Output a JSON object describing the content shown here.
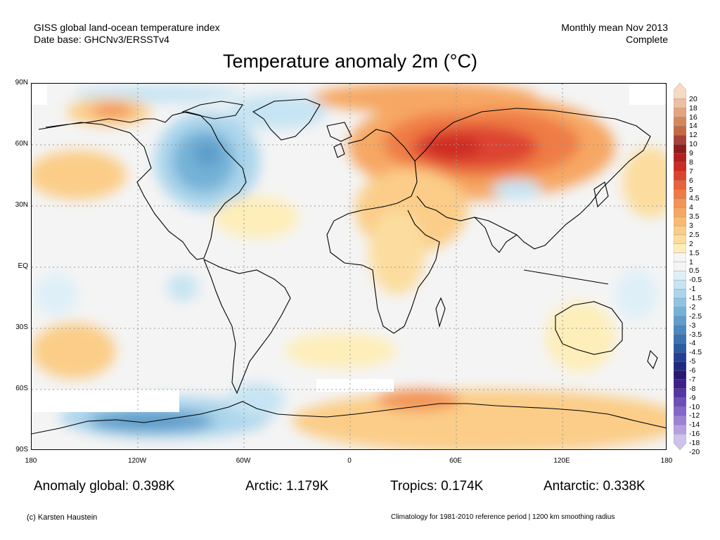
{
  "header": {
    "left_line1": "GISS global land-ocean temperature index",
    "left_line2": "Date base: GHCNv3/ERSSTv4",
    "right_line1": "Monthly mean Nov 2013",
    "right_line2": "Complete"
  },
  "title": "Temperature anomaly 2m (°C)",
  "lat_labels": [
    "90N",
    "60N",
    "30N",
    "EQ",
    "30S",
    "60S",
    "90S"
  ],
  "lon_labels": [
    "180",
    "120W",
    "60W",
    "0",
    "60E",
    "120E",
    "180"
  ],
  "colorbar": {
    "labels": [
      "20",
      "18",
      "16",
      "14",
      "12",
      "10",
      "9",
      "8",
      "7",
      "6",
      "5",
      "4.5",
      "4",
      "3.5",
      "3",
      "2.5",
      "2",
      "1.5",
      "1",
      "0.5",
      "-0.5",
      "-1",
      "-1.5",
      "-2",
      "-2.5",
      "-3",
      "-3.5",
      "-4",
      "-4.5",
      "-5",
      "-6",
      "-7",
      "-8",
      "-9",
      "-10",
      "-12",
      "-14",
      "-16",
      "-18",
      "-20"
    ],
    "colors": [
      "#f7d9c4",
      "#eebfa2",
      "#e3a47f",
      "#d4875f",
      "#c46b45",
      "#a5433a",
      "#8f1c1c",
      "#b51f21",
      "#cd2a22",
      "#dd4430",
      "#e8633a",
      "#ef7b45",
      "#f39354",
      "#f6a764",
      "#f9bb74",
      "#fbcd88",
      "#fcdd9f",
      "#feeeb9",
      "#f5f5f5",
      "#f5f5f5",
      "#deeff8",
      "#c6e4f3",
      "#acd5ec",
      "#8fc4e2",
      "#76b2d7",
      "#5f9ecb",
      "#4b88bf",
      "#3b72b1",
      "#2c5ba2",
      "#243f92",
      "#1e2a80",
      "#2a1873",
      "#3c1f88",
      "#5635a3",
      "#6d4fb8",
      "#8567c8",
      "#9d82d6",
      "#b6a0e2",
      "#cfc1ed"
    ]
  },
  "stats": {
    "global": "Anomaly global: 0.398K",
    "arctic": "Arctic: 1.179K",
    "tropics": "Tropics: 0.174K",
    "antarctic": "Antarctic: 0.338K"
  },
  "footer": {
    "credit": "(c) Karsten Haustein",
    "note": "Climatology for 1981-2010 reference period | 1200 km smoothing radius"
  }
}
